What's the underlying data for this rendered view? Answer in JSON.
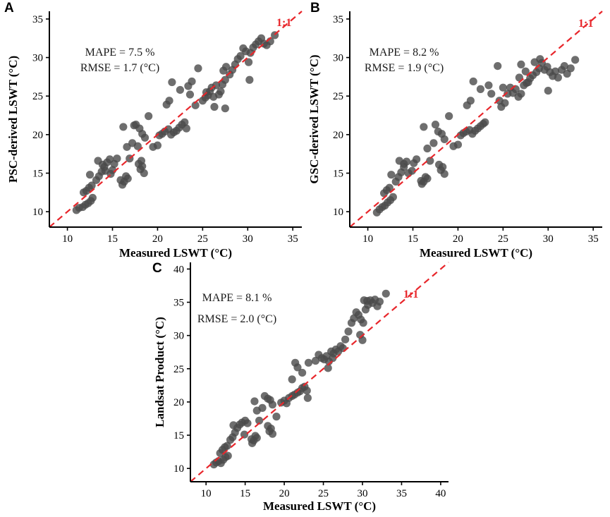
{
  "colors": {
    "point": "#4a4a4a",
    "ref_line": "#e8262b",
    "axis": "#000000"
  },
  "chart_data": [
    {
      "id": "A",
      "type": "scatter",
      "panel_label": "A",
      "xlabel": "Measured LSWT  (°C)",
      "ylabel": "PSC-derived LSWT  (°C)",
      "xlim": [
        8,
        36
      ],
      "ylim": [
        8,
        36
      ],
      "xticks": [
        10,
        15,
        20,
        25,
        30,
        35
      ],
      "yticks": [
        10,
        15,
        20,
        25,
        30,
        35
      ],
      "stats": [
        "MAPE = 7.5 %",
        "RMSE = 1.7 (°C)"
      ],
      "reference_label": "1:1",
      "points": [
        [
          11,
          10.2
        ],
        [
          11.3,
          10.5
        ],
        [
          11.7,
          10.6
        ],
        [
          12,
          10.9
        ],
        [
          12.3,
          11.1
        ],
        [
          12.6,
          11.4
        ],
        [
          12.8,
          11.8
        ],
        [
          11.8,
          12.5
        ],
        [
          12.1,
          12.7
        ],
        [
          12.4,
          13.1
        ],
        [
          12.7,
          13.4
        ],
        [
          12.5,
          14.8
        ],
        [
          13.2,
          14.1
        ],
        [
          13.5,
          14.6
        ],
        [
          13.8,
          15.2
        ],
        [
          14.1,
          15.8
        ],
        [
          14.4,
          16.4
        ],
        [
          14.7,
          16.8
        ],
        [
          13.4,
          16.6
        ],
        [
          13.9,
          16.1
        ],
        [
          14.2,
          15.3
        ],
        [
          15.2,
          16.2
        ],
        [
          15.5,
          16.9
        ],
        [
          15,
          15.4
        ],
        [
          14.8,
          14.9
        ],
        [
          16.1,
          13.5
        ],
        [
          16.3,
          13.9
        ],
        [
          16.5,
          14.6
        ],
        [
          16.7,
          14.3
        ],
        [
          15.9,
          14.1
        ],
        [
          16.2,
          21
        ],
        [
          16.6,
          18.4
        ],
        [
          16.9,
          16.9
        ],
        [
          17.2,
          18.9
        ],
        [
          17.4,
          21.2
        ],
        [
          17.6,
          21.3
        ],
        [
          18,
          20.8
        ],
        [
          17.8,
          18.5
        ],
        [
          18.3,
          20.1
        ],
        [
          18.6,
          19.6
        ],
        [
          17.9,
          16.2
        ],
        [
          18.1,
          15.5
        ],
        [
          18.3,
          15.9
        ],
        [
          18.5,
          15
        ],
        [
          18.2,
          16.6
        ],
        [
          19,
          22.4
        ],
        [
          19.5,
          18.4
        ],
        [
          20,
          18.6
        ],
        [
          20.2,
          19.9
        ],
        [
          20.5,
          20.1
        ],
        [
          20.8,
          20.4
        ],
        [
          21.2,
          20.7
        ],
        [
          21.5,
          20
        ],
        [
          21.8,
          20.3
        ],
        [
          22.1,
          20.5
        ],
        [
          22.4,
          20.9
        ],
        [
          22.7,
          21.3
        ],
        [
          23,
          21.6
        ],
        [
          23.2,
          20.8
        ],
        [
          21,
          23.9
        ],
        [
          21.3,
          24.4
        ],
        [
          21.6,
          26.8
        ],
        [
          22.5,
          25.8
        ],
        [
          23.4,
          26.3
        ],
        [
          23.6,
          25.2
        ],
        [
          23.8,
          26.9
        ],
        [
          24.5,
          28.6
        ],
        [
          25,
          24.4
        ],
        [
          25.3,
          24.8
        ],
        [
          25.6,
          25.1
        ],
        [
          25.8,
          25.6
        ],
        [
          26,
          26.1
        ],
        [
          26.2,
          24.9
        ],
        [
          26.5,
          26.4
        ],
        [
          26.8,
          25.2
        ],
        [
          27,
          25.6
        ],
        [
          27.2,
          26.5
        ],
        [
          27.5,
          27.1
        ],
        [
          27.3,
          28.3
        ],
        [
          27.6,
          28.8
        ],
        [
          28,
          27.8
        ],
        [
          28.3,
          28.4
        ],
        [
          28.6,
          29.1
        ],
        [
          28.9,
          29.8
        ],
        [
          29.2,
          30.2
        ],
        [
          29.5,
          31.2
        ],
        [
          29.8,
          30.8
        ],
        [
          30.1,
          29.4
        ],
        [
          30.3,
          30.6
        ],
        [
          30.6,
          31.3
        ],
        [
          30.9,
          31.7
        ],
        [
          31.2,
          32.1
        ],
        [
          31.5,
          32.5
        ],
        [
          31.8,
          31.8
        ],
        [
          30.2,
          27.1
        ],
        [
          32.1,
          31.6
        ],
        [
          32.5,
          32.1
        ],
        [
          33,
          32.9
        ],
        [
          27.5,
          23.4
        ],
        [
          26.3,
          23.6
        ],
        [
          25.4,
          25.5
        ],
        [
          24.2,
          23.8
        ]
      ]
    },
    {
      "id": "B",
      "type": "scatter",
      "panel_label": "B",
      "xlabel": "Measured LSWT  (°C)",
      "ylabel": "GSC-derived LSWT  (°C)",
      "xlim": [
        8,
        36
      ],
      "ylim": [
        8,
        36
      ],
      "xticks": [
        10,
        15,
        20,
        25,
        30,
        35
      ],
      "yticks": [
        10,
        15,
        20,
        25,
        30,
        35
      ],
      "stats": [
        "MAPE = 8.2 %",
        "RMSE = 1.9 (°C)"
      ],
      "reference_label": "1:1",
      "points": [
        [
          11,
          9.9
        ],
        [
          11.3,
          10.3
        ],
        [
          11.6,
          10.6
        ],
        [
          11.9,
          10.8
        ],
        [
          12.2,
          11.2
        ],
        [
          12.5,
          11.5
        ],
        [
          12.8,
          11.9
        ],
        [
          11.8,
          12.4
        ],
        [
          12.1,
          12.8
        ],
        [
          12.4,
          13.1
        ],
        [
          12.6,
          14.8
        ],
        [
          13.1,
          13.9
        ],
        [
          13.4,
          14.5
        ],
        [
          13.7,
          15.1
        ],
        [
          14,
          15.8
        ],
        [
          14.3,
          16.5
        ],
        [
          13.5,
          16.6
        ],
        [
          14,
          16.2
        ],
        [
          14.5,
          15
        ],
        [
          15.1,
          16.3
        ],
        [
          15.4,
          16.8
        ],
        [
          14.9,
          15.3
        ],
        [
          16,
          13.6
        ],
        [
          16.2,
          13.9
        ],
        [
          16.4,
          14.5
        ],
        [
          16.6,
          14.3
        ],
        [
          15.9,
          14
        ],
        [
          16.2,
          21
        ],
        [
          16.6,
          18.2
        ],
        [
          16.9,
          16.6
        ],
        [
          17.3,
          18.9
        ],
        [
          17.5,
          21.3
        ],
        [
          17.8,
          20.4
        ],
        [
          18.2,
          20.1
        ],
        [
          18.5,
          19.4
        ],
        [
          17.9,
          16.1
        ],
        [
          18.1,
          15.4
        ],
        [
          18.3,
          15.8
        ],
        [
          18.5,
          14.9
        ],
        [
          19,
          22.4
        ],
        [
          19.5,
          18.5
        ],
        [
          20,
          18.7
        ],
        [
          20.3,
          19.9
        ],
        [
          20.6,
          20.2
        ],
        [
          20.9,
          20.4
        ],
        [
          21.3,
          20.6
        ],
        [
          21.6,
          20.1
        ],
        [
          21.9,
          20.5
        ],
        [
          22.2,
          20.8
        ],
        [
          22.5,
          21.1
        ],
        [
          22.8,
          21.4
        ],
        [
          23,
          21.6
        ],
        [
          21,
          23.8
        ],
        [
          21.4,
          24.4
        ],
        [
          21.7,
          26.9
        ],
        [
          22.5,
          25.9
        ],
        [
          23.4,
          26.4
        ],
        [
          23.7,
          25.3
        ],
        [
          24.4,
          28.9
        ],
        [
          24.8,
          23.6
        ],
        [
          25.2,
          24.1
        ],
        [
          25.5,
          25.3
        ],
        [
          25.8,
          26.1
        ],
        [
          26.1,
          25.4
        ],
        [
          26.4,
          25.9
        ],
        [
          26.7,
          24.9
        ],
        [
          27,
          25.3
        ],
        [
          27.3,
          26.4
        ],
        [
          27.6,
          26.7
        ],
        [
          27,
          29.1
        ],
        [
          27.5,
          28.2
        ],
        [
          28,
          27.3
        ],
        [
          28.3,
          27.7
        ],
        [
          28.7,
          28.1
        ],
        [
          29,
          28.6
        ],
        [
          29.3,
          29.3
        ],
        [
          29.6,
          28.4
        ],
        [
          29.9,
          28.8
        ],
        [
          30.2,
          28.1
        ],
        [
          30.5,
          27.6
        ],
        [
          30.8,
          28.2
        ],
        [
          31.1,
          27.4
        ],
        [
          31.5,
          28.4
        ],
        [
          31.8,
          28.9
        ],
        [
          32.1,
          27.9
        ],
        [
          32.5,
          28.6
        ],
        [
          33,
          29.7
        ],
        [
          30,
          25.7
        ],
        [
          28.5,
          29.4
        ],
        [
          29.1,
          29.8
        ],
        [
          26.8,
          27.4
        ],
        [
          25,
          26.1
        ],
        [
          24.6,
          24.4
        ],
        [
          27.8,
          26.8
        ]
      ]
    },
    {
      "id": "C",
      "type": "scatter",
      "panel_label": "C",
      "xlabel": "Measured LSWT  (°C)",
      "ylabel": "Landsat Product  (°C)",
      "xlim": [
        8,
        41
      ],
      "ylim": [
        8,
        41
      ],
      "xticks": [
        10,
        15,
        20,
        25,
        30,
        35,
        40
      ],
      "yticks": [
        10,
        15,
        20,
        25,
        30,
        35,
        40
      ],
      "stats": [
        "MAPE = 8.1 %",
        "RMSE = 2.0 (°C)"
      ],
      "reference_label": "1:1",
      "points": [
        [
          11,
          10.6
        ],
        [
          11.3,
          10.9
        ],
        [
          11.6,
          11.1
        ],
        [
          11.9,
          10.8
        ],
        [
          12.2,
          11.3
        ],
        [
          12.5,
          11.7
        ],
        [
          12.8,
          11.9
        ],
        [
          11.8,
          12.3
        ],
        [
          12.1,
          12.8
        ],
        [
          12.4,
          13.2
        ],
        [
          12.7,
          13.4
        ],
        [
          13.1,
          14.3
        ],
        [
          13.4,
          14.7
        ],
        [
          13.7,
          15.4
        ],
        [
          14,
          16.1
        ],
        [
          14.3,
          16.6
        ],
        [
          14.6,
          16.9
        ],
        [
          13.5,
          16.5
        ],
        [
          15,
          17.2
        ],
        [
          15.3,
          16.8
        ],
        [
          14.9,
          15.1
        ],
        [
          15.9,
          13.8
        ],
        [
          16.1,
          14.2
        ],
        [
          16.3,
          14.9
        ],
        [
          16.5,
          14.6
        ],
        [
          15.8,
          14.4
        ],
        [
          16.2,
          20.1
        ],
        [
          16.5,
          18.7
        ],
        [
          16.8,
          17.2
        ],
        [
          17.2,
          19.1
        ],
        [
          17.5,
          20.9
        ],
        [
          17.9,
          20.5
        ],
        [
          18.2,
          20.3
        ],
        [
          18.5,
          19.6
        ],
        [
          17.9,
          16.4
        ],
        [
          18.1,
          15.6
        ],
        [
          18.3,
          16
        ],
        [
          18.5,
          15.2
        ],
        [
          19,
          17.8
        ],
        [
          19.6,
          19.9
        ],
        [
          20,
          20.2
        ],
        [
          20.3,
          19.8
        ],
        [
          20.6,
          20.6
        ],
        [
          21,
          20.9
        ],
        [
          21.3,
          21.1
        ],
        [
          21.7,
          21.4
        ],
        [
          22,
          21.6
        ],
        [
          22.3,
          22.1
        ],
        [
          22.6,
          22.3
        ],
        [
          22.9,
          21.7
        ],
        [
          23,
          20.6
        ],
        [
          21,
          23.4
        ],
        [
          21.4,
          25.9
        ],
        [
          21.7,
          25.2
        ],
        [
          22.3,
          24.4
        ],
        [
          23.1,
          25.9
        ],
        [
          24,
          26.2
        ],
        [
          24.4,
          27.1
        ],
        [
          24.8,
          26.6
        ],
        [
          25.1,
          26.4
        ],
        [
          25.4,
          26.9
        ],
        [
          25.7,
          26.1
        ],
        [
          26,
          27.6
        ],
        [
          26.3,
          27.3
        ],
        [
          26.6,
          27.9
        ],
        [
          26.9,
          27.6
        ],
        [
          27.2,
          28.4
        ],
        [
          27.5,
          28.1
        ],
        [
          27.8,
          29.4
        ],
        [
          28.2,
          30.6
        ],
        [
          28.6,
          31.9
        ],
        [
          28.9,
          32.6
        ],
        [
          29.2,
          33.5
        ],
        [
          29.5,
          33.1
        ],
        [
          29.8,
          32.4
        ],
        [
          30.1,
          31.9
        ],
        [
          30.4,
          33.9
        ],
        [
          30.7,
          34.6
        ],
        [
          31,
          35.3
        ],
        [
          31.3,
          34.9
        ],
        [
          31.6,
          35.4
        ],
        [
          31.9,
          34.4
        ],
        [
          32.2,
          35.1
        ],
        [
          30.2,
          35.3
        ],
        [
          30.6,
          35.2
        ],
        [
          29.7,
          30.1
        ],
        [
          30,
          29.3
        ],
        [
          33,
          36.3
        ],
        [
          26.2,
          26.6
        ],
        [
          25.6,
          25.1
        ]
      ]
    }
  ]
}
